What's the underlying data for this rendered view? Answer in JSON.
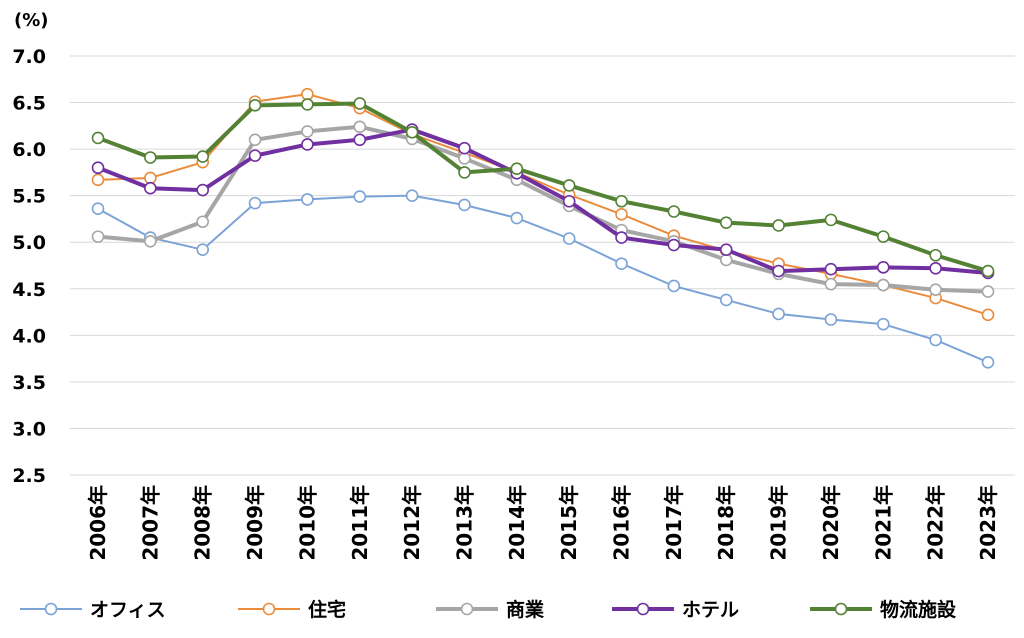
{
  "chart_data": {
    "type": "line",
    "unit_label": "(%)",
    "ylim": [
      2.5,
      7.0
    ],
    "yticks": [
      "7.0",
      "6.5",
      "6.0",
      "5.5",
      "5.0",
      "4.5",
      "4.0",
      "3.5",
      "3.0",
      "2.5"
    ],
    "grid": true,
    "legend_position": "bottom",
    "categories": [
      "2006年",
      "2007年",
      "2008年",
      "2009年",
      "2010年",
      "2011年",
      "2012年",
      "2013年",
      "2014年",
      "2015年",
      "2016年",
      "2017年",
      "2018年",
      "2019年",
      "2020年",
      "2021年",
      "2022年",
      "2023年"
    ],
    "series": [
      {
        "name": "オフィス",
        "color": "#7ba3d6",
        "width": 2,
        "values": [
          5.36,
          5.05,
          4.92,
          5.42,
          5.46,
          5.49,
          5.5,
          5.4,
          5.26,
          5.04,
          4.77,
          4.53,
          4.38,
          4.23,
          4.17,
          4.12,
          3.95,
          3.71
        ]
      },
      {
        "name": "住宅",
        "color": "#eb8c3c",
        "width": 2,
        "values": [
          5.67,
          5.69,
          5.86,
          6.51,
          6.59,
          6.44,
          6.16,
          5.96,
          5.75,
          5.51,
          5.3,
          5.07,
          4.91,
          4.77,
          4.66,
          4.54,
          4.4,
          4.22
        ]
      },
      {
        "name": "商業",
        "color": "#a6a6a6",
        "width": 4,
        "values": [
          5.06,
          5.01,
          5.22,
          6.1,
          6.19,
          6.24,
          6.11,
          5.9,
          5.67,
          5.39,
          5.13,
          5.01,
          4.81,
          4.66,
          4.55,
          4.54,
          4.49,
          4.47
        ]
      },
      {
        "name": "ホテル",
        "color": "#7030a0",
        "width": 4,
        "values": [
          5.8,
          5.58,
          5.56,
          5.93,
          6.05,
          6.1,
          6.21,
          6.01,
          5.74,
          5.44,
          5.05,
          4.97,
          4.92,
          4.69,
          4.71,
          4.73,
          4.72,
          4.67
        ]
      },
      {
        "name": "物流施設",
        "color": "#548235",
        "width": 4,
        "values": [
          6.12,
          5.91,
          5.92,
          6.47,
          6.48,
          6.49,
          6.18,
          5.75,
          5.79,
          5.61,
          5.44,
          5.33,
          5.21,
          5.18,
          5.24,
          5.06,
          4.86,
          4.69
        ]
      }
    ]
  }
}
